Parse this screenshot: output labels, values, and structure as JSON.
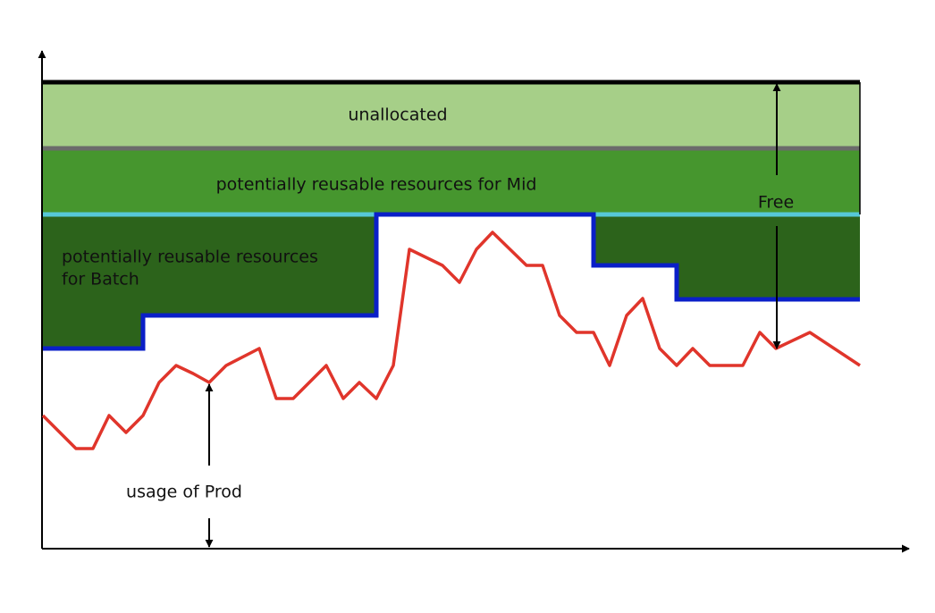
{
  "labels": {
    "unallocated": "unallocated",
    "mid": "potentially reusable resources for Mid",
    "batch_line1": "potentially reusable resources",
    "batch_line2": "for Batch",
    "free": "Free",
    "prod": "usage of Prod"
  },
  "colors": {
    "unallocated": "#a6cf88",
    "mid": "#46962e",
    "batch": "#2c631b",
    "prod_line": "#e0352b",
    "batch_boundary": "#0a1fc8",
    "mid_boundary": "#56c8d8",
    "unallocated_boundary": "#6b6b6b",
    "top_boundary": "#000000",
    "axis": "#000000"
  }
}
